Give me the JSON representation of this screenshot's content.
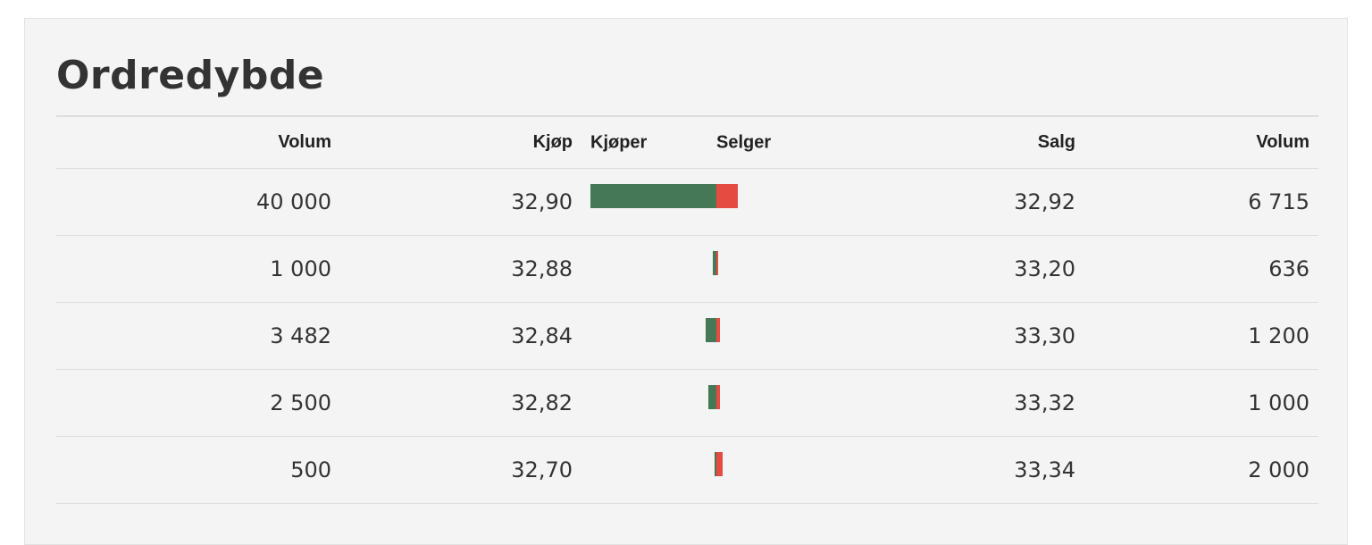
{
  "title": "Ordredybde",
  "headers": {
    "bid_volume": "Volum",
    "bid_price": "Kjøp",
    "buyer": "Kjøper",
    "seller": "Selger",
    "ask_price": "Salg",
    "ask_volume": "Volum"
  },
  "colors": {
    "buyer_bar": "#457857",
    "seller_bar": "#e54b41"
  },
  "rows": [
    {
      "bid_volume": "40 000",
      "bid_price": "32,90",
      "ask_price": "32,92",
      "ask_volume": "6 715",
      "bid_qty": 40000,
      "ask_qty": 6715
    },
    {
      "bid_volume": "1 000",
      "bid_price": "32,88",
      "ask_price": "33,20",
      "ask_volume": "636",
      "bid_qty": 1000,
      "ask_qty": 636
    },
    {
      "bid_volume": "3 482",
      "bid_price": "32,84",
      "ask_price": "33,30",
      "ask_volume": "1 200",
      "bid_qty": 3482,
      "ask_qty": 1200
    },
    {
      "bid_volume": "2 500",
      "bid_price": "32,82",
      "ask_price": "33,32",
      "ask_volume": "1 000",
      "bid_qty": 2500,
      "ask_qty": 1000
    },
    {
      "bid_volume": "500",
      "bid_price": "32,70",
      "ask_price": "33,34",
      "ask_volume": "2 000",
      "bid_qty": 500,
      "ask_qty": 2000
    }
  ]
}
